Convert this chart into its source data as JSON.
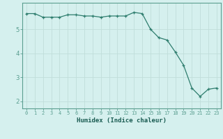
{
  "x": [
    0,
    1,
    2,
    3,
    4,
    5,
    6,
    7,
    8,
    9,
    10,
    11,
    12,
    13,
    14,
    15,
    16,
    17,
    18,
    19,
    20,
    21,
    22,
    23
  ],
  "y": [
    5.65,
    5.65,
    5.5,
    5.5,
    5.5,
    5.6,
    5.6,
    5.55,
    5.55,
    5.5,
    5.55,
    5.55,
    5.55,
    5.7,
    5.65,
    5.0,
    4.65,
    4.55,
    4.05,
    3.5,
    2.55,
    2.2,
    2.5,
    2.55
  ],
  "xlabel": "Humidex (Indice chaleur)",
  "line_color": "#2e7d6e",
  "marker_color": "#2e7d6e",
  "bg_color": "#d5f0ee",
  "grid_color": "#c0deda",
  "axis_color": "#5a9e90",
  "tick_label_color": "#1a5c52",
  "xlabel_color": "#1a5c52",
  "ylim": [
    1.7,
    6.1
  ],
  "xlim": [
    -0.5,
    23.5
  ],
  "yticks": [
    2,
    3,
    4,
    5
  ],
  "xticks": [
    0,
    1,
    2,
    3,
    4,
    5,
    6,
    7,
    8,
    9,
    10,
    11,
    12,
    13,
    14,
    15,
    16,
    17,
    18,
    19,
    20,
    21,
    22,
    23
  ]
}
